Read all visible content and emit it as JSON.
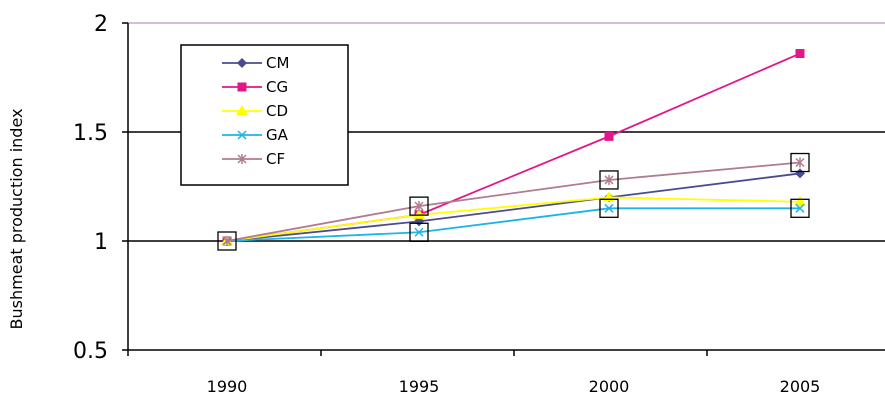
{
  "chart_data": {
    "type": "line",
    "ylabel": "Bushmeat production index",
    "xlabel": "",
    "title": "",
    "x": [
      "1990",
      "1995",
      "2000",
      "2005"
    ],
    "ylim": [
      0.5,
      2
    ],
    "yticks": [
      "0.5",
      "1",
      "1.5",
      "2"
    ],
    "grid": "horizontal major lines",
    "legend": "top-left",
    "series": [
      {
        "name": "CM",
        "color": "#4B4B8F",
        "marker": "diamond",
        "values": [
          1.0,
          1.09,
          1.2,
          1.31
        ]
      },
      {
        "name": "CG",
        "color": "#E2168A",
        "marker": "square",
        "values": [
          1.0,
          1.12,
          1.48,
          1.86
        ]
      },
      {
        "name": "CD",
        "color": "#FFFF00",
        "marker": "triangle",
        "values": [
          1.0,
          1.12,
          1.2,
          1.18
        ]
      },
      {
        "name": "GA",
        "color": "#1EB4E6",
        "marker": "x",
        "values": [
          1.0,
          1.04,
          1.15,
          1.15
        ]
      },
      {
        "name": "CF",
        "color": "#B07C90",
        "marker": "asterisk",
        "values": [
          1.0,
          1.16,
          1.28,
          1.36
        ]
      }
    ],
    "highlight_boxes": [
      {
        "series": "CF",
        "x_index": 1
      },
      {
        "series": "GA",
        "x_index": 1
      },
      {
        "series": "CF",
        "x_index": 2
      },
      {
        "series": "GA",
        "x_index": 2
      },
      {
        "series": "CF",
        "x_index": 3
      },
      {
        "series": "GA",
        "x_index": 3
      },
      {
        "series": "CF",
        "x_index": 0
      }
    ]
  }
}
